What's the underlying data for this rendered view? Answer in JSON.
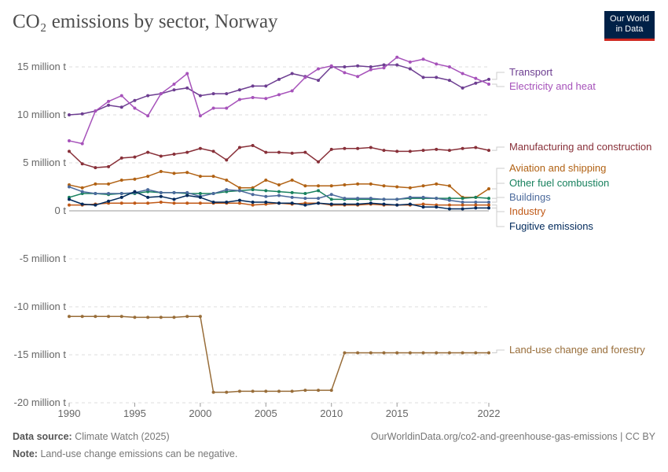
{
  "title": "CO₂ emissions by sector, Norway",
  "logo": {
    "line1": "Our World",
    "line2": "in Data"
  },
  "footer": {
    "source_label": "Data source:",
    "source": "Climate Watch (2025)",
    "url": "OurWorldinData.org/co2-and-greenhouse-gas-emissions | CC BY",
    "note_label": "Note:",
    "note": "Land-use change emissions can be negative."
  },
  "chart_data": {
    "type": "line",
    "title": "CO₂ emissions by sector, Norway",
    "xlabel": "",
    "ylabel": "",
    "xlim": [
      1990,
      2022
    ],
    "ylim": [
      -20,
      16
    ],
    "grid": true,
    "legend": "right (line-end labels)",
    "y_ticks": [
      {
        "v": 15,
        "label": "15 million t"
      },
      {
        "v": 10,
        "label": "10 million t"
      },
      {
        "v": 5,
        "label": "5 million t"
      },
      {
        "v": 0,
        "label": "0 t"
      },
      {
        "v": -5,
        "label": "-5 million t"
      },
      {
        "v": -10,
        "label": "-10 million t"
      },
      {
        "v": -15,
        "label": "-15 million t"
      },
      {
        "v": -20,
        "label": "-20 million t"
      }
    ],
    "x_ticks": [
      "1990",
      "1995",
      "2000",
      "2005",
      "2010",
      "2015",
      "2022"
    ],
    "x": [
      1990,
      1991,
      1992,
      1993,
      1994,
      1995,
      1996,
      1997,
      1998,
      1999,
      2000,
      2001,
      2002,
      2003,
      2004,
      2005,
      2006,
      2007,
      2008,
      2009,
      2010,
      2011,
      2012,
      2013,
      2014,
      2015,
      2016,
      2017,
      2018,
      2019,
      2020,
      2021,
      2022
    ],
    "series": [
      {
        "name": "Transport",
        "color": "#6d3e91",
        "values": [
          10.0,
          10.1,
          10.4,
          11.0,
          10.8,
          11.5,
          12.0,
          12.2,
          12.6,
          12.8,
          12.0,
          12.2,
          12.2,
          12.6,
          13.0,
          13.0,
          13.7,
          14.3,
          14.0,
          13.6,
          15.0,
          15.0,
          15.1,
          15.0,
          15.2,
          15.2,
          14.8,
          13.9,
          13.9,
          13.6,
          12.8,
          13.3,
          13.7
        ]
      },
      {
        "name": "Electricity and heat",
        "color": "#a652ba",
        "values": [
          7.3,
          7.0,
          10.4,
          11.4,
          12.0,
          10.7,
          9.9,
          12.2,
          13.2,
          14.3,
          9.9,
          10.7,
          10.7,
          11.6,
          11.8,
          11.7,
          12.1,
          12.5,
          13.9,
          14.8,
          15.1,
          14.4,
          14.0,
          14.7,
          14.9,
          16.0,
          15.5,
          15.8,
          15.3,
          15.0,
          14.3,
          13.8,
          13.2
        ]
      },
      {
        "name": "Manufacturing and construction",
        "color": "#883039",
        "values": [
          6.2,
          4.9,
          4.5,
          4.6,
          5.5,
          5.6,
          6.1,
          5.7,
          5.9,
          6.1,
          6.5,
          6.2,
          5.3,
          6.6,
          6.8,
          6.1,
          6.1,
          6.0,
          6.1,
          5.1,
          6.4,
          6.5,
          6.5,
          6.6,
          6.3,
          6.2,
          6.2,
          6.3,
          6.4,
          6.3,
          6.5,
          6.6,
          6.3
        ]
      },
      {
        "name": "Aviation and shipping",
        "color": "#b16214",
        "values": [
          2.7,
          2.4,
          2.8,
          2.8,
          3.2,
          3.3,
          3.6,
          4.1,
          3.9,
          4.0,
          3.6,
          3.6,
          3.2,
          2.4,
          2.4,
          3.2,
          2.7,
          3.2,
          2.6,
          2.6,
          2.6,
          2.7,
          2.8,
          2.8,
          2.6,
          2.5,
          2.4,
          2.6,
          2.8,
          2.6,
          1.4,
          1.4,
          2.3
        ]
      },
      {
        "name": "Other fuel combustion",
        "color": "#18815e",
        "values": [
          1.4,
          1.8,
          1.8,
          1.7,
          1.8,
          1.8,
          2.0,
          1.9,
          1.9,
          1.8,
          1.8,
          1.8,
          2.0,
          2.1,
          2.2,
          2.1,
          2.0,
          1.9,
          1.8,
          2.1,
          1.2,
          1.2,
          1.2,
          1.2,
          1.2,
          1.2,
          1.3,
          1.3,
          1.3,
          1.3,
          1.3,
          1.4,
          1.3
        ]
      },
      {
        "name": "Buildings",
        "color": "#4c6a9c",
        "values": [
          2.5,
          2.0,
          1.8,
          1.8,
          1.8,
          1.9,
          2.2,
          1.9,
          1.9,
          1.9,
          1.5,
          1.8,
          2.2,
          2.1,
          1.7,
          1.5,
          1.6,
          1.4,
          1.3,
          1.3,
          1.7,
          1.3,
          1.3,
          1.3,
          1.2,
          1.2,
          1.4,
          1.4,
          1.3,
          1.1,
          0.9,
          0.9,
          0.9
        ]
      },
      {
        "name": "Industry",
        "color": "#c05917",
        "values": [
          0.6,
          0.6,
          0.7,
          0.8,
          0.8,
          0.8,
          0.8,
          0.9,
          0.8,
          0.8,
          0.8,
          0.8,
          0.8,
          0.8,
          0.6,
          0.7,
          0.8,
          0.7,
          0.8,
          0.8,
          0.6,
          0.6,
          0.6,
          0.7,
          0.6,
          0.6,
          0.6,
          0.7,
          0.6,
          0.6,
          0.6,
          0.6,
          0.6
        ]
      },
      {
        "name": "Fugitive emissions",
        "color": "#00295b",
        "values": [
          1.2,
          0.7,
          0.6,
          1.0,
          1.4,
          2.0,
          1.4,
          1.5,
          1.2,
          1.6,
          1.4,
          0.9,
          0.9,
          1.1,
          0.9,
          0.9,
          0.8,
          0.8,
          0.6,
          0.8,
          0.7,
          0.7,
          0.7,
          0.8,
          0.7,
          0.6,
          0.7,
          0.4,
          0.4,
          0.2,
          0.2,
          0.3,
          0.3
        ]
      },
      {
        "name": "Land-use change and forestry",
        "color": "#986d39",
        "values": [
          -11.0,
          -11.0,
          -11.0,
          -11.0,
          -11.0,
          -11.1,
          -11.1,
          -11.1,
          -11.1,
          -11.0,
          -11.0,
          -18.9,
          -18.9,
          -18.8,
          -18.8,
          -18.8,
          -18.8,
          -18.8,
          -18.7,
          -18.7,
          -18.7,
          -14.8,
          -14.8,
          -14.8,
          -14.8,
          -14.8,
          -14.8,
          -14.8,
          -14.8,
          -14.8,
          -14.8,
          -14.8,
          -14.8
        ]
      }
    ]
  }
}
